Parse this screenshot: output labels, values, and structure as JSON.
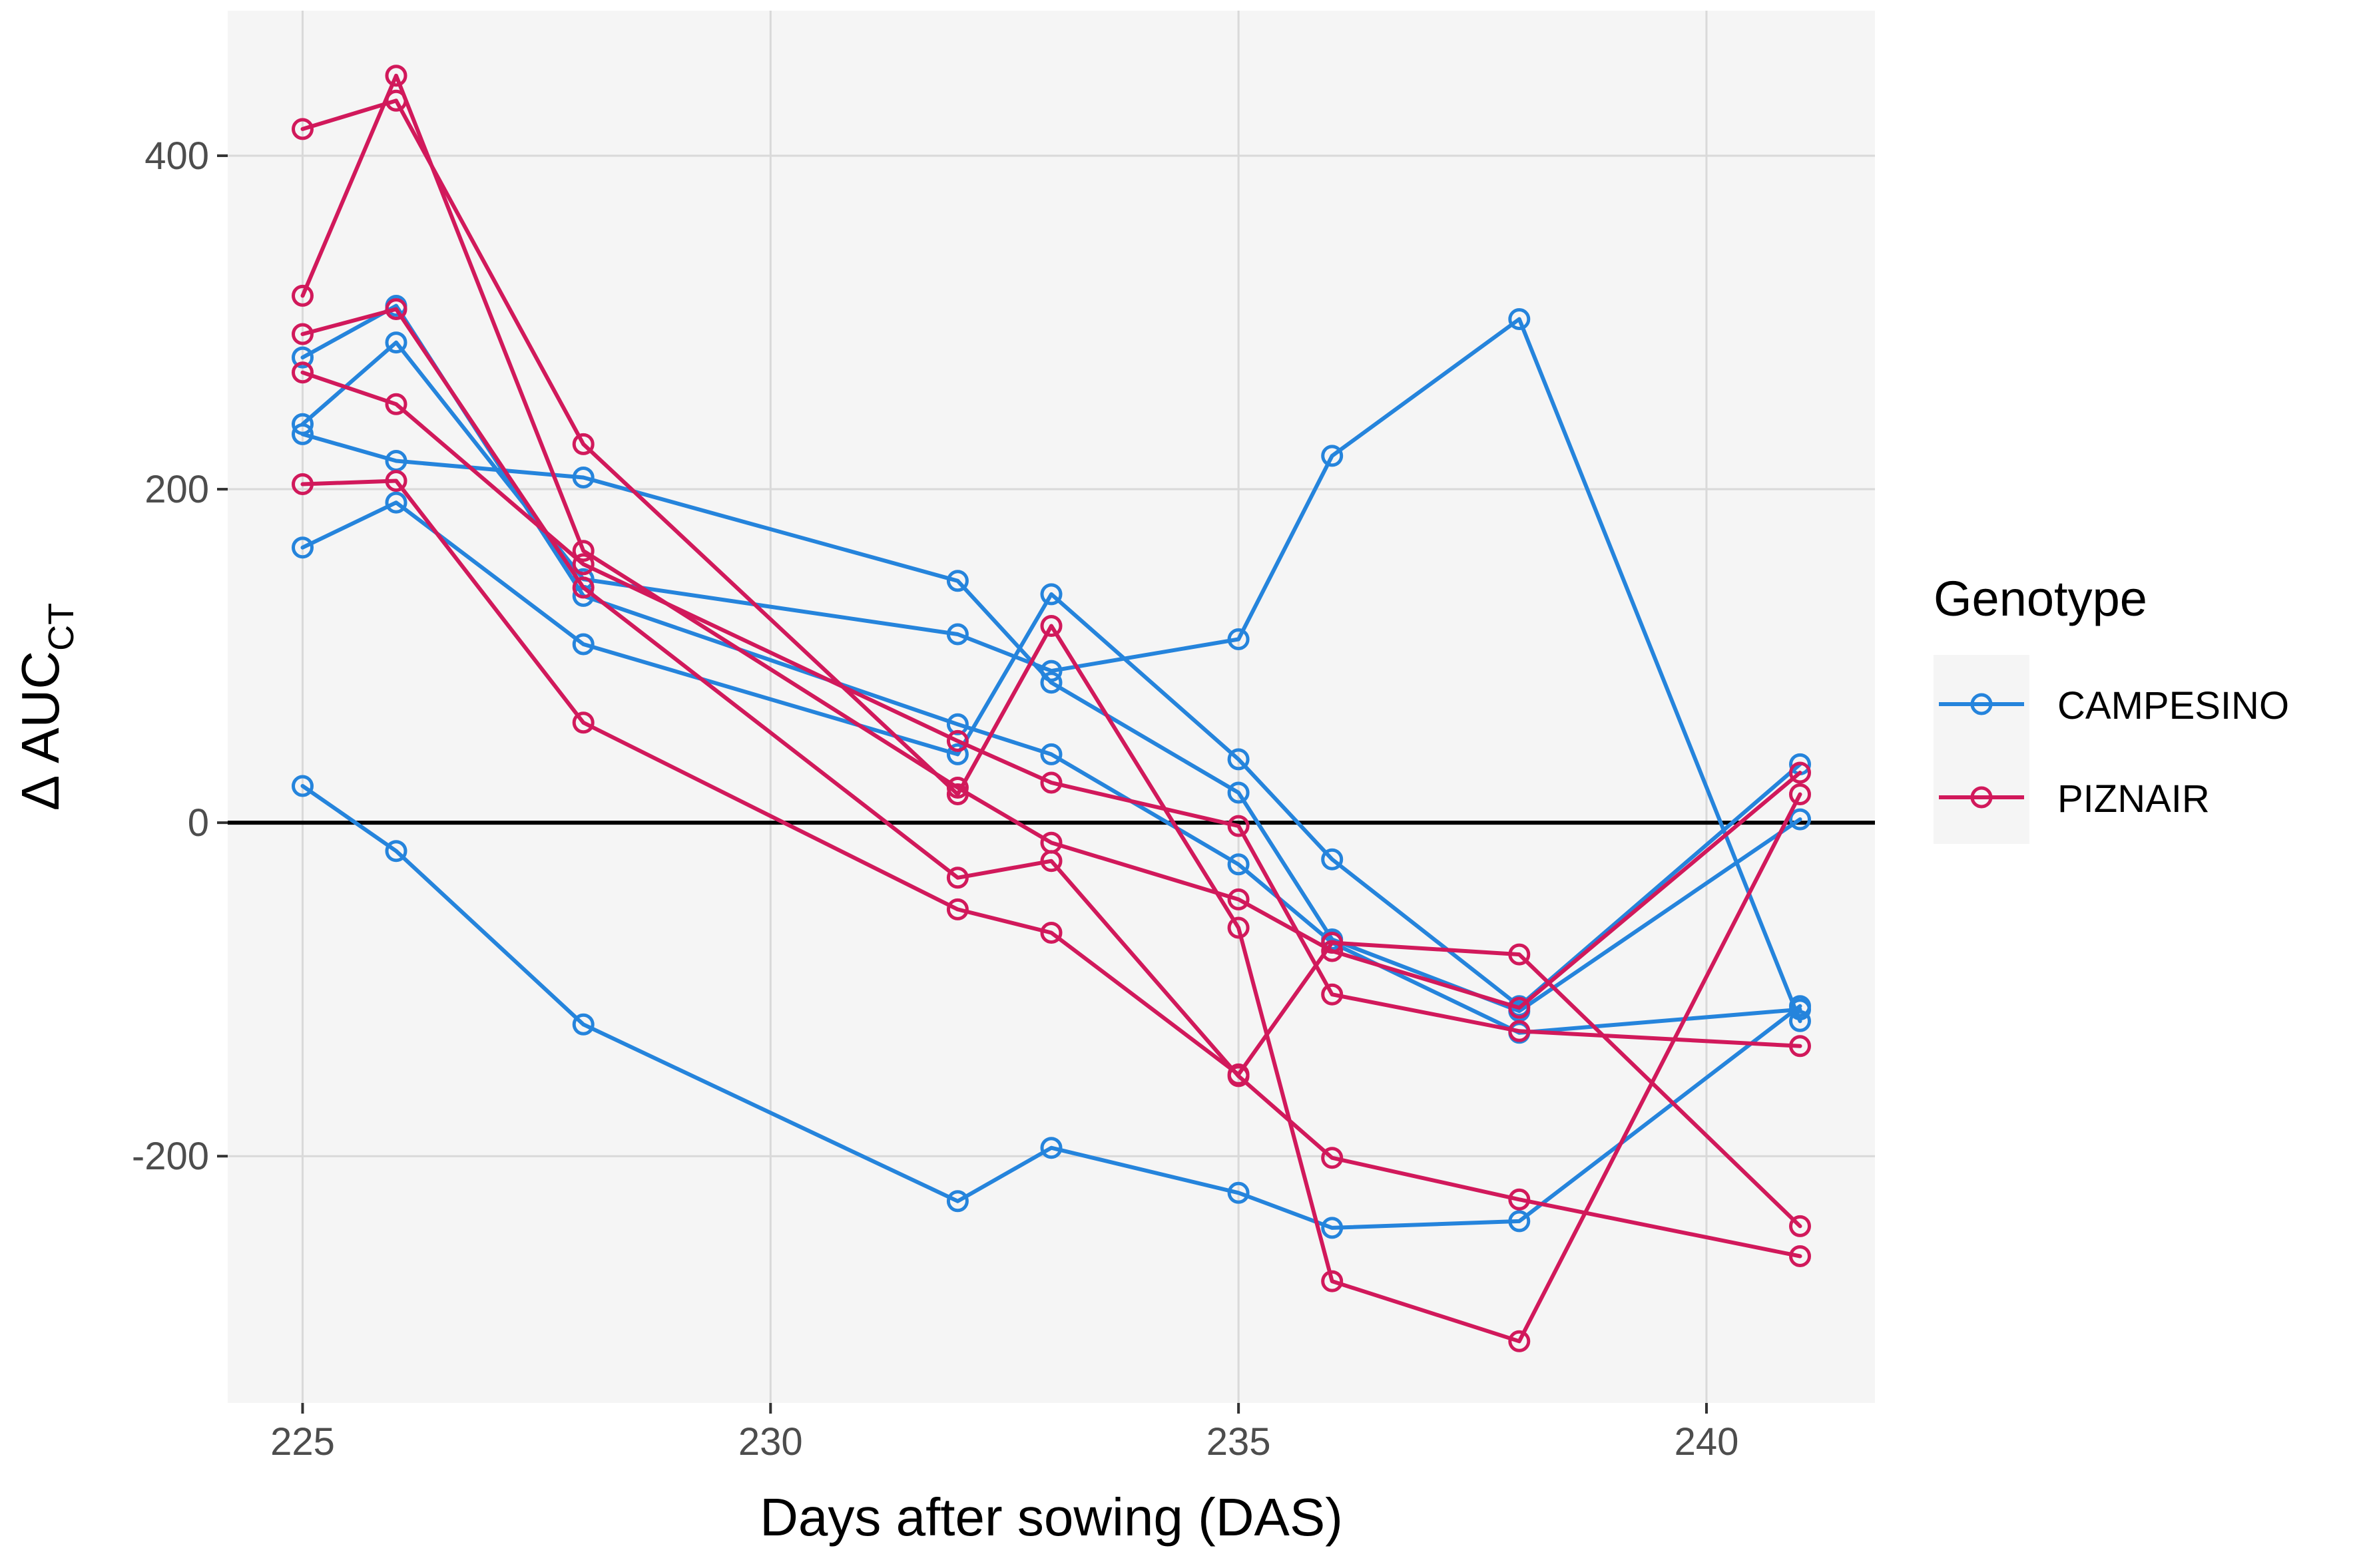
{
  "chart_data": {
    "type": "line",
    "title": "",
    "xlabel": "Days after sowing (DAS)",
    "ylabel_main": "Δ AUC",
    "ylabel_sub": "CT",
    "xlim": [
      224.2,
      241.8
    ],
    "ylim": [
      -348,
      487
    ],
    "x_ticks": [
      225,
      230,
      235,
      240
    ],
    "x_tick_labels": [
      "225",
      "230",
      "235",
      "240"
    ],
    "y_ticks": [
      -200,
      0,
      200,
      400
    ],
    "y_tick_labels": [
      "-200",
      "0",
      "200",
      "400"
    ],
    "grid": true,
    "reference_line_y": 0,
    "legend": {
      "title": "Genotype",
      "position": "right",
      "entries": [
        {
          "name": "CAMPESINO",
          "color": "#2584DC"
        },
        {
          "name": "PIZNAIR",
          "color": "#D1195B"
        }
      ]
    },
    "colors": {
      "CAMPESINO": "#2584DC",
      "PIZNAIR": "#D1195B",
      "panel_bg": "#F5F5F5",
      "grid": "#D9D9D9",
      "zero_line": "#000000"
    },
    "series": [
      {
        "name": "CAMPESINO",
        "genotype": "CAMPESINO",
        "x": [
          225,
          226,
          228,
          232,
          233,
          235,
          236,
          238,
          241
        ],
        "y": [
          233,
          217,
          207,
          145,
          84,
          18,
          -70,
          -113,
          2
        ]
      },
      {
        "name": "CAMPESINO",
        "genotype": "CAMPESINO",
        "x": [
          225,
          226,
          228,
          232,
          233,
          235,
          236,
          238,
          241
        ],
        "y": [
          279,
          310,
          136,
          59,
          41,
          -25,
          -72,
          -126,
          -112
        ]
      },
      {
        "name": "CAMPESINO",
        "genotype": "CAMPESINO",
        "x": [
          225,
          226,
          228,
          232,
          233,
          235,
          236,
          238,
          241
        ],
        "y": [
          165,
          192,
          107,
          41,
          137,
          38,
          -22,
          -110,
          35
        ]
      },
      {
        "name": "CAMPESINO",
        "genotype": "CAMPESINO",
        "x": [
          225,
          226,
          228,
          232,
          233,
          235,
          236,
          238,
          241
        ],
        "y": [
          239,
          288,
          146,
          113,
          91,
          110,
          220,
          302,
          -119
        ]
      },
      {
        "name": "CAMPESINO",
        "genotype": "CAMPESINO",
        "x": [
          225,
          226,
          228,
          232,
          233,
          235,
          236,
          238,
          241
        ],
        "y": [
          22,
          -17,
          -121,
          -227,
          -195,
          -222,
          -243,
          -239,
          -110
        ]
      },
      {
        "name": "PIZNAIR",
        "genotype": "PIZNAIR",
        "x": [
          225,
          226,
          228,
          232,
          233,
          235,
          236,
          238,
          241
        ],
        "y": [
          416,
          433,
          227,
          17,
          118,
          -63,
          -275,
          -311,
          17
        ]
      },
      {
        "name": "PIZNAIR",
        "genotype": "PIZNAIR",
        "x": [
          225,
          226,
          228,
          232,
          233,
          235,
          236,
          238,
          241
        ],
        "y": [
          316,
          448,
          163,
          21,
          -12,
          -46,
          -77,
          -111,
          30
        ]
      },
      {
        "name": "PIZNAIR",
        "genotype": "PIZNAIR",
        "x": [
          225,
          226,
          228,
          232,
          233,
          235,
          236,
          238,
          241
        ],
        "y": [
          293,
          308,
          141,
          -33,
          -23,
          -152,
          -201,
          -226,
          -260
        ]
      },
      {
        "name": "PIZNAIR",
        "genotype": "PIZNAIR",
        "x": [
          225,
          226,
          228,
          232,
          233,
          235,
          236,
          238,
          241
        ],
        "y": [
          270,
          251,
          155,
          49,
          24,
          -2,
          -103,
          -125,
          -134
        ]
      },
      {
        "name": "PIZNAIR",
        "genotype": "PIZNAIR",
        "x": [
          225,
          226,
          228,
          232,
          233,
          235,
          236,
          238,
          241
        ],
        "y": [
          203,
          205,
          60,
          -52,
          -66,
          -151,
          -72,
          -79,
          -242
        ]
      }
    ]
  }
}
